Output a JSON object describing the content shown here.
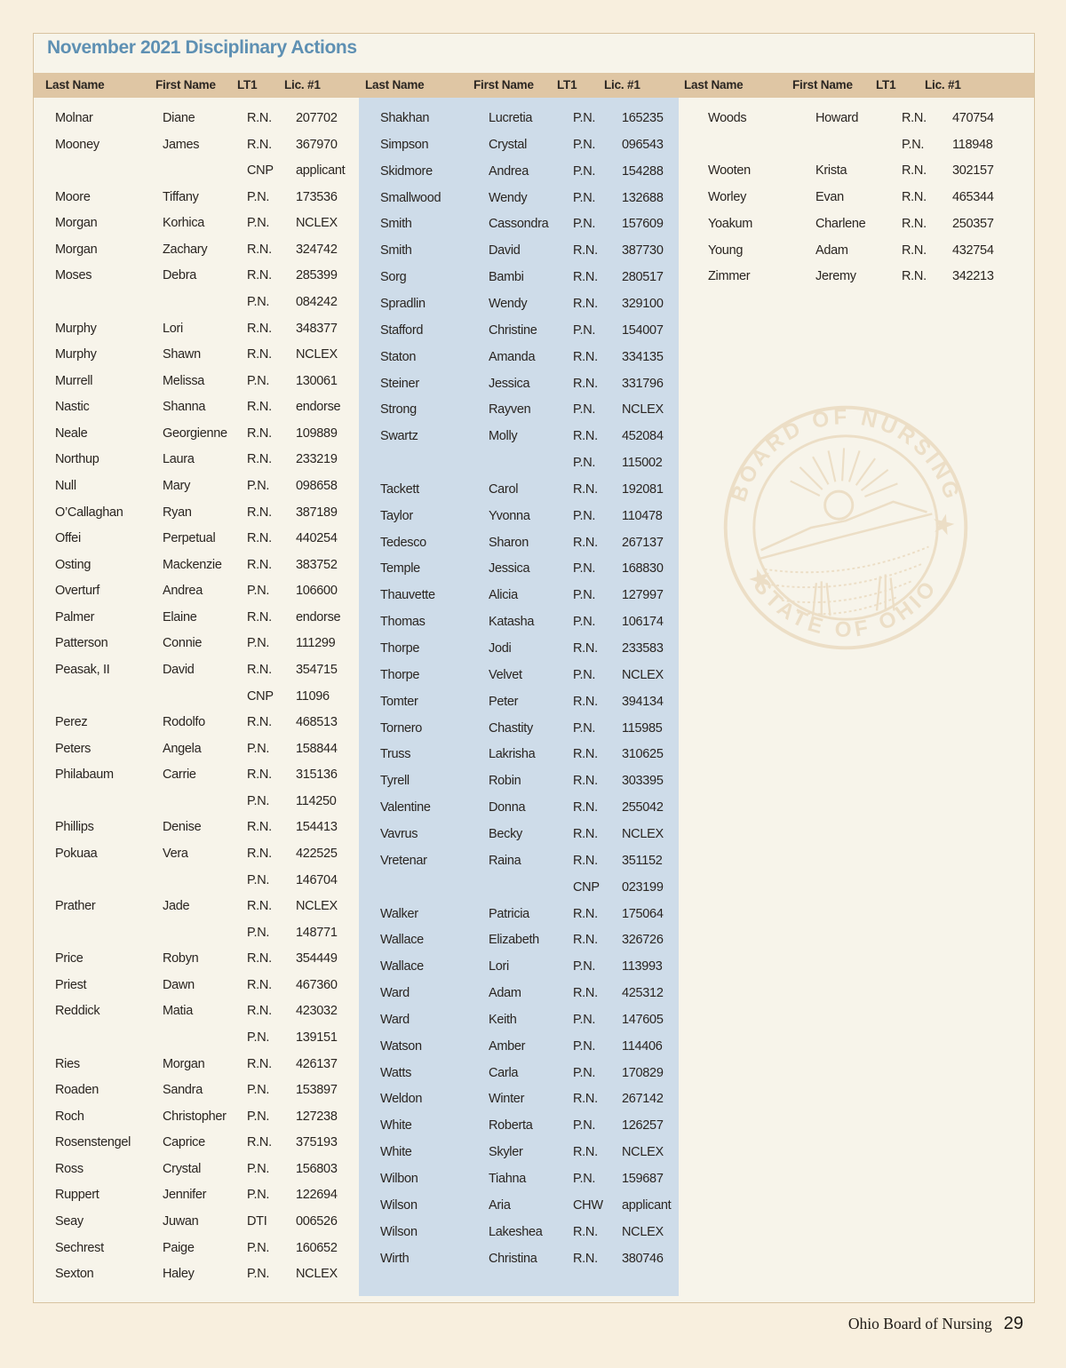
{
  "page": {
    "title": "November 2021 Disciplinary Actions",
    "watermark": {
      "top_text": "BOARD OF NURSING",
      "bottom_text": "STATE OF OHIO"
    },
    "footer": {
      "text": "Ohio Board of Nursing",
      "page_number": "29"
    },
    "colors": {
      "page_bg": "#f8efde",
      "box_bg": "#f7f4ea",
      "box_border": "#d8c3a0",
      "header_bg": "#dfc6a4",
      "panel_blue": "#cedce9",
      "title_blue": "#5e90b3",
      "text": "#2a2521",
      "watermark": "#e4cda9"
    }
  },
  "table": {
    "header_labels": [
      "Last Name",
      "First Name",
      "LT1",
      "Lic. #1"
    ],
    "groups": [
      {
        "rows": [
          [
            "Molnar",
            "Diane",
            "R.N.",
            "207702"
          ],
          [
            "Mooney",
            "James",
            "R.N.",
            "367970"
          ],
          [
            "",
            "",
            "CNP",
            "applicant"
          ],
          [
            "Moore",
            "Tiffany",
            "P.N.",
            "173536"
          ],
          [
            "Morgan",
            "Korhica",
            "P.N.",
            "NCLEX"
          ],
          [
            "Morgan",
            "Zachary",
            "R.N.",
            "324742"
          ],
          [
            "Moses",
            "Debra",
            "R.N.",
            "285399"
          ],
          [
            "",
            "",
            "P.N.",
            "084242"
          ],
          [
            "Murphy",
            "Lori",
            "R.N.",
            "348377"
          ],
          [
            "Murphy",
            "Shawn",
            "R.N.",
            "NCLEX"
          ],
          [
            "Murrell",
            "Melissa",
            "P.N.",
            "130061"
          ],
          [
            "Nastic",
            "Shanna",
            "R.N.",
            "endorse"
          ],
          [
            "Neale",
            "Georgienne",
            "R.N.",
            "109889"
          ],
          [
            "Northup",
            "Laura",
            "R.N.",
            "233219"
          ],
          [
            "Null",
            "Mary",
            "P.N.",
            "098658"
          ],
          [
            "O’Callaghan",
            "Ryan",
            "R.N.",
            "387189"
          ],
          [
            "Offei",
            "Perpetual",
            "R.N.",
            "440254"
          ],
          [
            "Osting",
            "Mackenzie",
            "R.N.",
            "383752"
          ],
          [
            "Overturf",
            "Andrea",
            "P.N.",
            "106600"
          ],
          [
            "Palmer",
            "Elaine",
            "R.N.",
            "endorse"
          ],
          [
            "Patterson",
            "Connie",
            "P.N.",
            "111299"
          ],
          [
            "Peasak, II",
            "David",
            "R.N.",
            "354715"
          ],
          [
            "",
            "",
            "CNP",
            "11096"
          ],
          [
            "Perez",
            "Rodolfo",
            "R.N.",
            "468513"
          ],
          [
            "Peters",
            "Angela",
            "P.N.",
            "158844"
          ],
          [
            "Philabaum",
            "Carrie",
            "R.N.",
            "315136"
          ],
          [
            "",
            "",
            "P.N.",
            "114250"
          ],
          [
            "Phillips",
            "Denise",
            "R.N.",
            "154413"
          ],
          [
            "Pokuaa",
            "Vera",
            "R.N.",
            "422525"
          ],
          [
            "",
            "",
            "P.N.",
            "146704"
          ],
          [
            "Prather",
            "Jade",
            "R.N.",
            "NCLEX"
          ],
          [
            "",
            "",
            "P.N.",
            "148771"
          ],
          [
            "Price",
            "Robyn",
            "R.N.",
            "354449"
          ],
          [
            "Priest",
            "Dawn",
            "R.N.",
            "467360"
          ],
          [
            "Reddick",
            "Matia",
            "R.N.",
            "423032"
          ],
          [
            "",
            "",
            "P.N.",
            "139151"
          ],
          [
            "Ries",
            "Morgan",
            "R.N.",
            "426137"
          ],
          [
            "Roaden",
            "Sandra",
            "P.N.",
            "153897"
          ],
          [
            "Roch",
            "Christopher",
            "P.N.",
            "127238"
          ],
          [
            "Rosenstengel",
            "Caprice",
            "R.N.",
            "375193"
          ],
          [
            "Ross",
            "Crystal",
            "P.N.",
            "156803"
          ],
          [
            "Ruppert",
            "Jennifer",
            "P.N.",
            "122694"
          ],
          [
            "Seay",
            "Juwan",
            "DTI",
            "006526"
          ],
          [
            "Sechrest",
            "Paige",
            "P.N.",
            "160652"
          ],
          [
            "Sexton",
            "Haley",
            "P.N.",
            "NCLEX"
          ]
        ]
      },
      {
        "rows": [
          [
            "Shakhan",
            "Lucretia",
            "P.N.",
            "165235"
          ],
          [
            "Simpson",
            "Crystal",
            "P.N.",
            "096543"
          ],
          [
            "Skidmore",
            "Andrea",
            "P.N.",
            "154288"
          ],
          [
            "Smallwood",
            "Wendy",
            "P.N.",
            "132688"
          ],
          [
            "Smith",
            "Cassondra",
            "P.N.",
            "157609"
          ],
          [
            "Smith",
            "David",
            "R.N.",
            "387730"
          ],
          [
            "Sorg",
            "Bambi",
            "R.N.",
            "280517"
          ],
          [
            "Spradlin",
            "Wendy",
            "R.N.",
            "329100"
          ],
          [
            "Stafford",
            "Christine",
            "P.N.",
            "154007"
          ],
          [
            "Staton",
            "Amanda",
            "R.N.",
            "334135"
          ],
          [
            "Steiner",
            "Jessica",
            "R.N.",
            "331796"
          ],
          [
            "Strong",
            "Rayven",
            "P.N.",
            "NCLEX"
          ],
          [
            "Swartz",
            "Molly",
            "R.N.",
            "452084"
          ],
          [
            "",
            "",
            "P.N.",
            "115002"
          ],
          [
            "Tackett",
            "Carol",
            "R.N.",
            "192081"
          ],
          [
            "Taylor",
            "Yvonna",
            "P.N.",
            "110478"
          ],
          [
            "Tedesco",
            "Sharon",
            "R.N.",
            "267137"
          ],
          [
            "Temple",
            "Jessica",
            "P.N.",
            "168830"
          ],
          [
            "Thauvette",
            "Alicia",
            "P.N.",
            "127997"
          ],
          [
            "Thomas",
            "Katasha",
            "P.N.",
            "106174"
          ],
          [
            "Thorpe",
            "Jodi",
            "R.N.",
            "233583"
          ],
          [
            "Thorpe",
            "Velvet",
            "P.N.",
            "NCLEX"
          ],
          [
            "Tomter",
            "Peter",
            "R.N.",
            "394134"
          ],
          [
            "Tornero",
            "Chastity",
            "P.N.",
            "115985"
          ],
          [
            "Truss",
            "Lakrisha",
            "R.N.",
            "310625"
          ],
          [
            "Tyrell",
            "Robin",
            "R.N.",
            "303395"
          ],
          [
            "Valentine",
            "Donna",
            "R.N.",
            "255042"
          ],
          [
            "Vavrus",
            "Becky",
            "R.N.",
            "NCLEX"
          ],
          [
            "Vretenar",
            "Raina",
            "R.N.",
            "351152"
          ],
          [
            "",
            "",
            "CNP",
            "023199"
          ],
          [
            "Walker",
            "Patricia",
            "R.N.",
            "175064"
          ],
          [
            "Wallace",
            "Elizabeth",
            "R.N.",
            "326726"
          ],
          [
            "Wallace",
            "Lori",
            "P.N.",
            "113993"
          ],
          [
            "Ward",
            "Adam",
            "R.N.",
            "425312"
          ],
          [
            "Ward",
            "Keith",
            "P.N.",
            "147605"
          ],
          [
            "Watson",
            "Amber",
            "P.N.",
            "114406"
          ],
          [
            "Watts",
            "Carla",
            "P.N.",
            "170829"
          ],
          [
            "Weldon",
            "Winter",
            "R.N.",
            "267142"
          ],
          [
            "White",
            "Roberta",
            "P.N.",
            "126257"
          ],
          [
            "White",
            "Skyler",
            "R.N.",
            "NCLEX"
          ],
          [
            "Wilbon",
            "Tiahna",
            "P.N.",
            "159687"
          ],
          [
            "Wilson",
            "Aria",
            "CHW",
            "applicant"
          ],
          [
            "Wilson",
            "Lakeshea",
            "R.N.",
            "NCLEX"
          ],
          [
            "Wirth",
            "Christina",
            "R.N.",
            "380746"
          ]
        ]
      },
      {
        "rows": [
          [
            "Woods",
            "Howard",
            "R.N.",
            "470754"
          ],
          [
            "",
            "",
            "P.N.",
            "118948"
          ],
          [
            "Wooten",
            "Krista",
            "R.N.",
            "302157"
          ],
          [
            "Worley",
            "Evan",
            "R.N.",
            "465344"
          ],
          [
            "Yoakum",
            "Charlene",
            "R.N.",
            "250357"
          ],
          [
            "Young",
            "Adam",
            "R.N.",
            "432754"
          ],
          [
            "Zimmer",
            "Jeremy",
            "R.N.",
            "342213"
          ]
        ]
      }
    ]
  }
}
